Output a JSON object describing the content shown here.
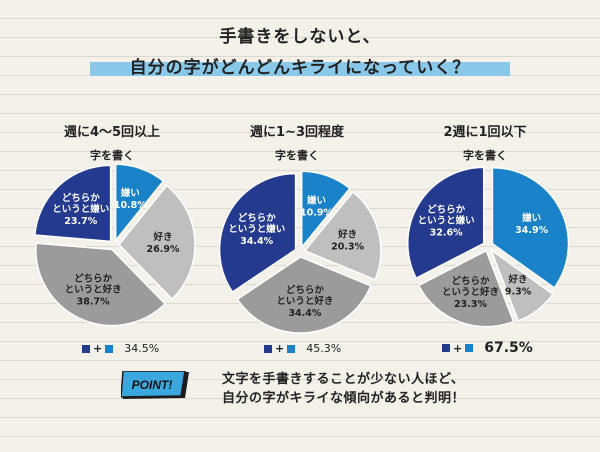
{
  "title": {
    "line1": "手書きをしないと、",
    "line2": "自分の字がどんどんキライになっていく？"
  },
  "colors": {
    "dark_blue": "#243a8e",
    "blue": "#1a82c8",
    "light_gray": "#bfbfbf",
    "gray": "#9b9b9b",
    "band": "#8ac8ea"
  },
  "legend_marker": "+",
  "chart_data": [
    {
      "type": "pie",
      "title": "週に4～5回以上",
      "subtitle": "字を書く",
      "slices": [
        {
          "label": "嫌い",
          "value": 10.8,
          "value_text": "10.8%",
          "color": "#1a82c8"
        },
        {
          "label": "好き",
          "value": 26.9,
          "value_text": "26.9%",
          "color": "#bfbfbf"
        },
        {
          "label": "どちらか\nというと好き",
          "value": 38.7,
          "value_text": "38.7%",
          "color": "#9b9b9b"
        },
        {
          "label": "どちらか\nというと嫌い",
          "value": 23.7,
          "value_text": "23.7%",
          "color": "#243a8e"
        }
      ],
      "summary": "34.5%",
      "summary_highlight": false
    },
    {
      "type": "pie",
      "title": "週に1~3回程度",
      "subtitle": "字を書く",
      "slices": [
        {
          "label": "嫌い",
          "value": 10.9,
          "value_text": "10.9%",
          "color": "#1a82c8"
        },
        {
          "label": "好き",
          "value": 20.3,
          "value_text": "20.3%",
          "color": "#bfbfbf"
        },
        {
          "label": "どちらか\nというと好き",
          "value": 34.4,
          "value_text": "34.4%",
          "color": "#9b9b9b"
        },
        {
          "label": "どちらか\nというと嫌い",
          "value": 34.4,
          "value_text": "34.4%",
          "color": "#243a8e"
        }
      ],
      "summary": "45.3%",
      "summary_highlight": false
    },
    {
      "type": "pie",
      "title": "2週に1回以下",
      "subtitle": "字を書く",
      "slices": [
        {
          "label": "嫌い",
          "value": 34.9,
          "value_text": "34.9%",
          "color": "#1a82c8"
        },
        {
          "label": "好き",
          "value": 9.3,
          "value_text": "9.3%",
          "color": "#bfbfbf"
        },
        {
          "label": "どちらか\nというと好き",
          "value": 23.3,
          "value_text": "23.3%",
          "color": "#9b9b9b"
        },
        {
          "label": "どちらか\nというと嫌い",
          "value": 32.6,
          "value_text": "32.6%",
          "color": "#243a8e"
        }
      ],
      "summary": "67.5%",
      "summary_highlight": true
    }
  ],
  "point": {
    "badge": "POINT!",
    "line1": "文字を手書きすることが少ない人ほど、",
    "line2": "自分の字がキライな傾向があると判明！"
  }
}
